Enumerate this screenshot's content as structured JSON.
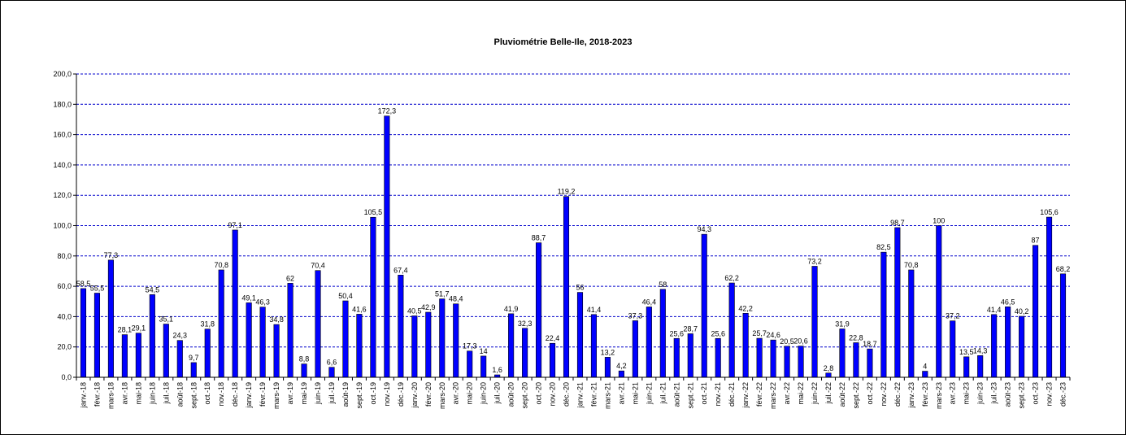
{
  "chart_data": {
    "type": "bar",
    "title": "Pluviométrie Belle-Ile, 2018-2023",
    "xlabel": "",
    "ylabel": "",
    "ylim": [
      0,
      200
    ],
    "yticks": [
      "0,0",
      "20,0",
      "40,0",
      "60,0",
      "80,0",
      "100,0",
      "120,0",
      "140,0",
      "160,0",
      "180,0",
      "200,0"
    ],
    "grid": true,
    "bar_color": "#0000FF",
    "grid_color": "#0000CC",
    "categories": [
      "janv.-18",
      "févr.-18",
      "mars-18",
      "avr.-18",
      "mai-18",
      "juin-18",
      "juil.-18",
      "août-18",
      "sept.-18",
      "oct.-18",
      "nov.-18",
      "déc.-18",
      "janv.-19",
      "févr.-19",
      "mars-19",
      "avr.-19",
      "mai-19",
      "juin-19",
      "juil.-19",
      "août-19",
      "sept.-19",
      "oct.-19",
      "nov.-19",
      "déc.-19",
      "janv.-20",
      "févr.-20",
      "mars-20",
      "avr.-20",
      "mai-20",
      "juin-20",
      "juil.-20",
      "août-20",
      "sept.-20",
      "oct.-20",
      "nov.-20",
      "déc.-20",
      "janv.-21",
      "févr.-21",
      "mars-21",
      "avr.-21",
      "mai-21",
      "juin-21",
      "juil.-21",
      "août-21",
      "sept.-21",
      "oct.-21",
      "nov.-21",
      "déc.-21",
      "janv.-22",
      "févr.-22",
      "mars-22",
      "avr.-22",
      "mai-22",
      "juin-22",
      "juil.-22",
      "août-22",
      "sept.-22",
      "oct.-22",
      "nov.-22",
      "déc.-22",
      "janv.-23",
      "févr.-23",
      "mars-23",
      "avr.-23",
      "mai-23",
      "juin-23",
      "juil.-23",
      "août-23",
      "sept.-23",
      "oct.-23",
      "nov.-23",
      "déc.-23"
    ],
    "values": [
      58.5,
      55.5,
      77.3,
      28.1,
      29.1,
      54.5,
      35.1,
      24.3,
      9.7,
      31.8,
      70.8,
      97.1,
      49.1,
      46.3,
      34.8,
      62,
      8.8,
      70.4,
      6.6,
      50.4,
      41.6,
      105.5,
      172.3,
      67.4,
      40.5,
      42.9,
      51.7,
      48.4,
      17.3,
      14,
      1.6,
      41.9,
      32.3,
      88.7,
      22.4,
      119.2,
      56,
      41.4,
      13.2,
      4.2,
      37.3,
      46.4,
      58,
      25.6,
      28.7,
      94.3,
      25.6,
      62.2,
      42.2,
      25.7,
      24.6,
      20.5,
      20.6,
      73.2,
      2.8,
      31.9,
      22.8,
      18.7,
      82.5,
      98.7,
      70.8,
      4,
      100,
      37.2,
      13.5,
      14.3,
      41.4,
      46.5,
      40.2,
      87,
      105.6,
      68.2
    ],
    "data_labels": [
      "58,5",
      "55,5",
      "77,3",
      "28,1",
      "29,1",
      "54,5",
      "35,1",
      "24,3",
      "9,7",
      "31,8",
      "70,8",
      "97,1",
      "49,1",
      "46,3",
      "34,8",
      "62",
      "8,8",
      "70,4",
      "6,6",
      "50,4",
      "41,6",
      "105,5",
      "172,3",
      "67,4",
      "40,5",
      "42,9",
      "51,7",
      "48,4",
      "17,3",
      "14",
      "1,6",
      "41,9",
      "32,3",
      "88,7",
      "22,4",
      "119,2",
      "56",
      "41,4",
      "13,2",
      "4,2",
      "37,3",
      "46,4",
      "58",
      "25,6",
      "28,7",
      "94,3",
      "25,6",
      "62,2",
      "42,2",
      "25,7",
      "24,6",
      "20,5",
      "20,6",
      "73,2",
      "2,8",
      "31,9",
      "22,8",
      "18,7",
      "82,5",
      "98,7",
      "70,8",
      "4",
      "100",
      "37,2",
      "13,5",
      "14,3",
      "41,4",
      "46,5",
      "40,2",
      "87",
      "105,6",
      "68,2"
    ]
  }
}
